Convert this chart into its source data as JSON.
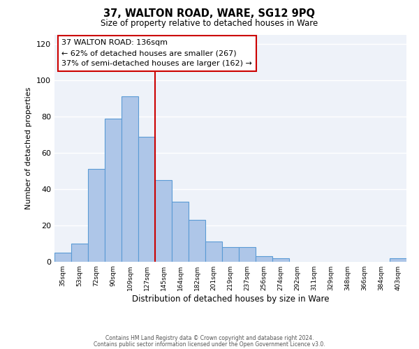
{
  "title": "37, WALTON ROAD, WARE, SG12 9PQ",
  "subtitle": "Size of property relative to detached houses in Ware",
  "xlabel": "Distribution of detached houses by size in Ware",
  "ylabel": "Number of detached properties",
  "bar_labels": [
    "35sqm",
    "53sqm",
    "72sqm",
    "90sqm",
    "109sqm",
    "127sqm",
    "145sqm",
    "164sqm",
    "182sqm",
    "201sqm",
    "219sqm",
    "237sqm",
    "256sqm",
    "274sqm",
    "292sqm",
    "311sqm",
    "329sqm",
    "348sqm",
    "366sqm",
    "384sqm",
    "403sqm"
  ],
  "bar_heights": [
    5,
    10,
    51,
    79,
    91,
    69,
    45,
    33,
    23,
    11,
    8,
    8,
    3,
    2,
    0,
    0,
    0,
    0,
    0,
    0,
    2
  ],
  "bar_color": "#aec6e8",
  "bar_edge_color": "#5b9bd5",
  "vline_x_index": 5.5,
  "vline_color": "#cc0000",
  "annotation_line1": "37 WALTON ROAD: 136sqm",
  "annotation_line2": "← 62% of detached houses are smaller (267)",
  "annotation_line3": "37% of semi-detached houses are larger (162) →",
  "annotation_box_color": "#ffffff",
  "annotation_box_edge_color": "#cc0000",
  "ylim": [
    0,
    125
  ],
  "yticks": [
    0,
    20,
    40,
    60,
    80,
    100,
    120
  ],
  "footer_line1": "Contains HM Land Registry data © Crown copyright and database right 2024.",
  "footer_line2": "Contains public sector information licensed under the Open Government Licence v3.0.",
  "bg_color": "#eef2f9"
}
